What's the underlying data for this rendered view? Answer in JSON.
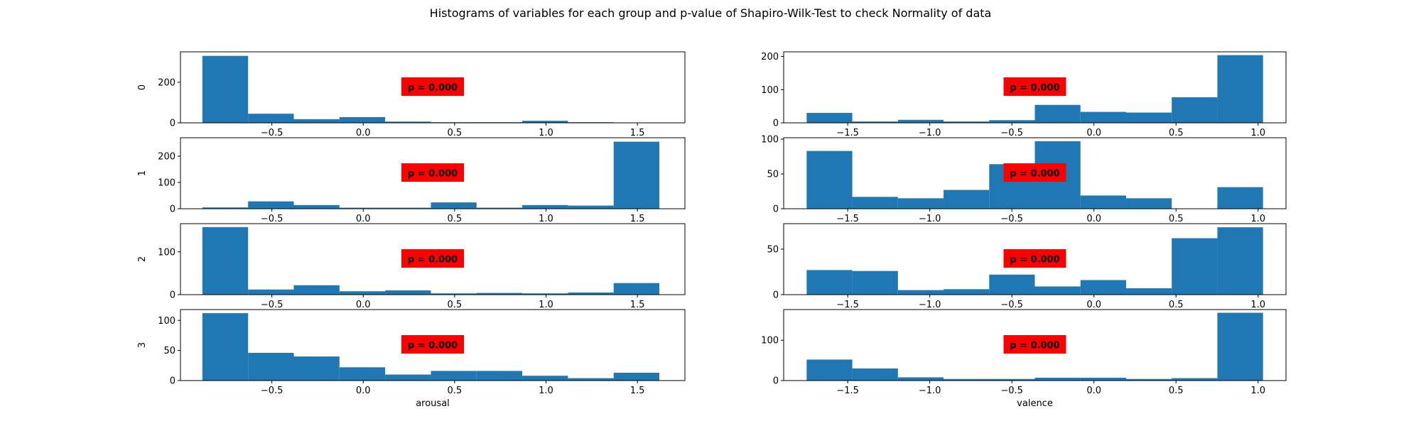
{
  "suptitle": "Histograms of variables for each group and p-value of Shapiro-Wilk-Test to check Normality of data",
  "colors": {
    "bar": "#1f77b4",
    "pbox": "#ff0000"
  },
  "chart_data": [
    {
      "type": "bar",
      "group": "0",
      "variable": "arousal",
      "bin_edges": [
        -0.88,
        -0.63,
        -0.38,
        -0.13,
        0.12,
        0.37,
        0.62,
        0.87,
        1.12,
        1.37,
        1.62
      ],
      "values": [
        330,
        45,
        18,
        28,
        6,
        3,
        3,
        10,
        3,
        0
      ],
      "xlim": [
        -1.0,
        1.76
      ],
      "ylim": [
        0,
        350
      ],
      "xticks": [
        "−0.5",
        "0.0",
        "0.5",
        "1.0",
        "1.5"
      ],
      "yticks": [
        "0",
        "200"
      ],
      "ylabel": "0",
      "xlabel": "",
      "annotation": "p = 0.000"
    },
    {
      "type": "bar",
      "group": "1",
      "variable": "arousal",
      "bin_edges": [
        -0.88,
        -0.63,
        -0.38,
        -0.13,
        0.12,
        0.37,
        0.62,
        0.87,
        1.12,
        1.37,
        1.62
      ],
      "values": [
        5,
        28,
        14,
        4,
        4,
        24,
        4,
        14,
        12,
        255
      ],
      "xlim": [
        -1.0,
        1.76
      ],
      "ylim": [
        0,
        270
      ],
      "xticks": [
        "−0.5",
        "0.0",
        "0.5",
        "1.0",
        "1.5"
      ],
      "yticks": [
        "0",
        "100",
        "200"
      ],
      "ylabel": "1",
      "xlabel": "",
      "annotation": "p = 0.000"
    },
    {
      "type": "bar",
      "group": "2",
      "variable": "arousal",
      "bin_edges": [
        -0.88,
        -0.63,
        -0.38,
        -0.13,
        0.12,
        0.37,
        0.62,
        0.87,
        1.12,
        1.37,
        1.62
      ],
      "values": [
        158,
        12,
        22,
        8,
        10,
        3,
        4,
        3,
        5,
        27
      ],
      "xlim": [
        -1.0,
        1.76
      ],
      "ylim": [
        0,
        166
      ],
      "xticks": [
        "−0.5",
        "0.0",
        "0.5",
        "1.0",
        "1.5"
      ],
      "yticks": [
        "0",
        "100"
      ],
      "ylabel": "2",
      "xlabel": "",
      "annotation": "p = 0.000"
    },
    {
      "type": "bar",
      "group": "3",
      "variable": "arousal",
      "bin_edges": [
        -0.88,
        -0.63,
        -0.38,
        -0.13,
        0.12,
        0.37,
        0.62,
        0.87,
        1.12,
        1.37,
        1.62
      ],
      "values": [
        112,
        46,
        40,
        22,
        10,
        16,
        16,
        8,
        4,
        13
      ],
      "xlim": [
        -1.0,
        1.76
      ],
      "ylim": [
        0,
        118
      ],
      "xticks": [
        "−0.5",
        "0.0",
        "0.5",
        "1.0",
        "1.5"
      ],
      "yticks": [
        "0",
        "50",
        "100"
      ],
      "ylabel": "3",
      "xlabel": "arousal",
      "annotation": "p = 0.000"
    },
    {
      "type": "bar",
      "group": "0",
      "variable": "valence",
      "bin_edges": [
        -1.75,
        -1.472,
        -1.194,
        -0.916,
        -0.638,
        -0.36,
        -0.082,
        0.196,
        0.474,
        0.752,
        1.03
      ],
      "values": [
        30,
        4,
        9,
        4,
        8,
        54,
        33,
        31,
        77,
        204
      ],
      "xlim": [
        -1.89,
        1.17
      ],
      "ylim": [
        0,
        214
      ],
      "xticks": [
        "−1.5",
        "−1.0",
        "−0.5",
        "0.0",
        "0.5",
        "1.0"
      ],
      "yticks": [
        "0",
        "100",
        "200"
      ],
      "ylabel": "",
      "xlabel": "",
      "annotation": "p = 0.000"
    },
    {
      "type": "bar",
      "group": "1",
      "variable": "valence",
      "bin_edges": [
        -1.75,
        -1.472,
        -1.194,
        -0.916,
        -0.638,
        -0.36,
        -0.082,
        0.196,
        0.474,
        0.752,
        1.03
      ],
      "values": [
        83,
        17,
        15,
        27,
        64,
        97,
        19,
        15,
        0,
        31
      ],
      "xlim": [
        -1.89,
        1.17
      ],
      "ylim": [
        0,
        102
      ],
      "xticks": [
        "−1.5",
        "−1.0",
        "−0.5",
        "0.0",
        "0.5",
        "1.0"
      ],
      "yticks": [
        "0",
        "50",
        "100"
      ],
      "ylabel": "",
      "xlabel": "",
      "annotation": "p = 0.000"
    },
    {
      "type": "bar",
      "group": "2",
      "variable": "valence",
      "bin_edges": [
        -1.75,
        -1.472,
        -1.194,
        -0.916,
        -0.638,
        -0.36,
        -0.082,
        0.196,
        0.474,
        0.752,
        1.03
      ],
      "values": [
        27,
        26,
        5,
        6,
        22,
        9,
        16,
        7,
        62,
        74
      ],
      "xlim": [
        -1.89,
        1.17
      ],
      "ylim": [
        0,
        78
      ],
      "xticks": [
        "−1.5",
        "−1.0",
        "−0.5",
        "0.0",
        "0.5",
        "1.0"
      ],
      "yticks": [
        "0",
        "50"
      ],
      "ylabel": "",
      "xlabel": "",
      "annotation": "p = 0.000"
    },
    {
      "type": "bar",
      "group": "3",
      "variable": "valence",
      "bin_edges": [
        -1.75,
        -1.472,
        -1.194,
        -0.916,
        -0.638,
        -0.36,
        -0.082,
        0.196,
        0.474,
        0.752,
        1.03
      ],
      "values": [
        52,
        30,
        8,
        4,
        4,
        7,
        7,
        4,
        6,
        168
      ],
      "xlim": [
        -1.89,
        1.17
      ],
      "ylim": [
        0,
        176
      ],
      "xticks": [
        "−1.5",
        "−1.0",
        "−0.5",
        "0.0",
        "0.5",
        "1.0"
      ],
      "yticks": [
        "0",
        "100"
      ],
      "ylabel": "",
      "xlabel": "valence",
      "annotation": "p = 0.000"
    }
  ]
}
